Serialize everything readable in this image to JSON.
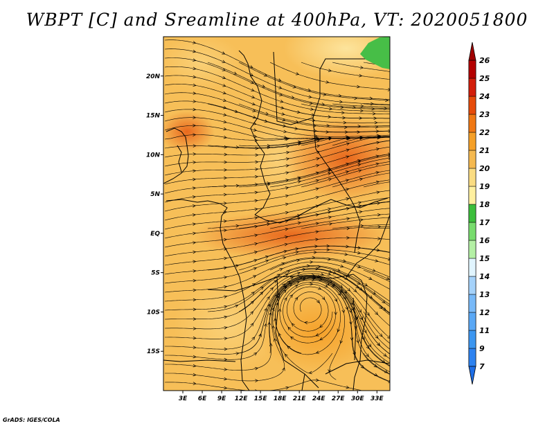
{
  "title": "WBPT [C] and Sreamline at 400hPa, VT: 2020051800",
  "credit": "GrADS: IGES/COLA",
  "map": {
    "lon_range": [
      0,
      35
    ],
    "lat_range": [
      -20,
      25
    ],
    "lon_ticks": [
      {
        "value": 3,
        "label": "3E"
      },
      {
        "value": 6,
        "label": "6E"
      },
      {
        "value": 9,
        "label": "9E"
      },
      {
        "value": 12,
        "label": "12E"
      },
      {
        "value": 15,
        "label": "15E"
      },
      {
        "value": 18,
        "label": "18E"
      },
      {
        "value": 21,
        "label": "21E"
      },
      {
        "value": 24,
        "label": "24E"
      },
      {
        "value": 27,
        "label": "27E"
      },
      {
        "value": 30,
        "label": "30E"
      },
      {
        "value": 33,
        "label": "33E"
      }
    ],
    "lat_ticks": [
      {
        "value": 20,
        "label": "20N"
      },
      {
        "value": 15,
        "label": "15N"
      },
      {
        "value": 10,
        "label": "10N"
      },
      {
        "value": 5,
        "label": "5N"
      },
      {
        "value": 0,
        "label": "EQ"
      },
      {
        "value": -5,
        "label": "5S"
      },
      {
        "value": -10,
        "label": "10S"
      },
      {
        "value": -15,
        "label": "15S"
      }
    ],
    "vortex_center": {
      "lon": 22.5,
      "lat": -9.5
    },
    "green_patch": {
      "lon": 32.5,
      "lat": 24.5,
      "value_c": 17.5
    }
  },
  "colorbar": {
    "levels": [
      "7",
      "9",
      "11",
      "12",
      "13",
      "14",
      "15",
      "16",
      "17",
      "18",
      "19",
      "20",
      "21",
      "22",
      "23",
      "24",
      "25",
      "26"
    ],
    "colors": [
      "#1e6ee6",
      "#2d82f0",
      "#3c96f0",
      "#5aa8f5",
      "#78b9f8",
      "#a5d2fa",
      "#e1f5ff",
      "#b4f0a5",
      "#78dc6e",
      "#3cbe3c",
      "#fff0a0",
      "#fadc82",
      "#f5b950",
      "#f5a028",
      "#f07814",
      "#e64b0a",
      "#d21e0a",
      "#b40000",
      "#960000"
    ],
    "bottom_color": "#1e6ee6",
    "top_color": "#a00000"
  }
}
